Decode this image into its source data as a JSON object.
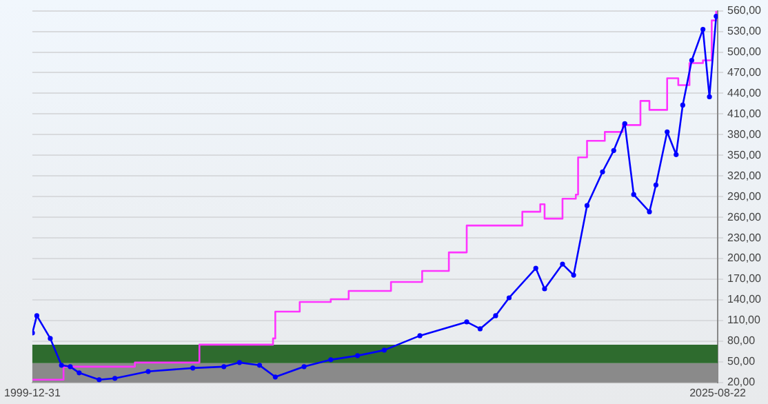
{
  "chart_data": {
    "type": "line",
    "xlim": [
      "1999-12-31",
      "2025-08-22"
    ],
    "xticks": [
      {
        "value": "1999-12-31",
        "label": "1999-12-31"
      },
      {
        "value": "2025-08-22",
        "label": "2025-08-22"
      }
    ],
    "ylim": [
      20,
      560
    ],
    "yticks": [
      {
        "value": 20,
        "label": "20,00"
      },
      {
        "value": 50,
        "label": "50,00"
      },
      {
        "value": 80,
        "label": "80,00"
      },
      {
        "value": 110,
        "label": "110,00"
      },
      {
        "value": 140,
        "label": "140,00"
      },
      {
        "value": 170,
        "label": "170,00"
      },
      {
        "value": 200,
        "label": "200,00"
      },
      {
        "value": 230,
        "label": "230,00"
      },
      {
        "value": 260,
        "label": "260,00"
      },
      {
        "value": 290,
        "label": "290,00"
      },
      {
        "value": 320,
        "label": "320,00"
      },
      {
        "value": 350,
        "label": "350,00"
      },
      {
        "value": 380,
        "label": "380,00"
      },
      {
        "value": 410,
        "label": "410,00"
      },
      {
        "value": 440,
        "label": "440,00"
      },
      {
        "value": 470,
        "label": "470,00"
      },
      {
        "value": 500,
        "label": "500,00"
      },
      {
        "value": 530,
        "label": "530,00"
      },
      {
        "value": 560,
        "label": "560,00"
      }
    ],
    "grid": "y",
    "legend": false,
    "bands": [
      {
        "axis": "y",
        "from": 20,
        "to": 48,
        "color": "#8a8a8a"
      },
      {
        "axis": "y",
        "from": 48,
        "to": 75,
        "color": "#2e6b2e"
      }
    ],
    "series": [
      {
        "type": "line",
        "color": "#0000ff",
        "marker": "circle",
        "x": [
          "2000-01",
          "2000-03",
          "2000-09",
          "2001-02",
          "2001-06",
          "2001-10",
          "2002-07",
          "2003-02",
          "2004-05",
          "2006-01",
          "2007-03",
          "2007-10",
          "2008-07",
          "2009-02",
          "2010-03",
          "2011-03",
          "2012-03",
          "2013-03",
          "2014-07",
          "2016-04",
          "2016-10",
          "2017-05",
          "2017-11",
          "2018-11",
          "2019-03",
          "2019-11",
          "2020-04",
          "2020-10",
          "2021-05",
          "2021-10",
          "2022-03",
          "2022-07",
          "2023-02",
          "2023-05",
          "2023-10",
          "2024-02",
          "2024-05",
          "2024-09",
          "2025-02",
          "2025-05",
          "2025-08"
        ],
        "values": [
          92,
          117,
          84,
          45,
          43,
          34,
          24,
          26,
          36,
          41,
          43,
          49,
          45,
          28,
          43,
          53,
          59,
          67,
          88,
          108,
          98,
          117,
          143,
          186,
          156,
          192,
          176,
          277,
          326,
          357,
          396,
          293,
          268,
          307,
          384,
          351,
          423,
          488,
          533,
          435,
          552
        ]
      },
      {
        "type": "step",
        "color": "#ff33ff",
        "marker": "none",
        "x": [
          "2000-01",
          "2001-03",
          "2002-04",
          "2003-11",
          "2006-04",
          "2009-01",
          "2009-02",
          "2010-01",
          "2011-03",
          "2011-11",
          "2013-06",
          "2014-08",
          "2015-08",
          "2016-04",
          "2017-08",
          "2018-05",
          "2019-01",
          "2019-03",
          "2019-11",
          "2020-05",
          "2020-06",
          "2020-10",
          "2021-06",
          "2022-02",
          "2022-10",
          "2023-02",
          "2023-10",
          "2024-03",
          "2024-08",
          "2025-02",
          "2025-06",
          "2025-08"
        ],
        "values": [
          24,
          43,
          43,
          49,
          75,
          84,
          123,
          137,
          141,
          153,
          166,
          182,
          209,
          248,
          248,
          268,
          279,
          258,
          287,
          293,
          347,
          371,
          384,
          394,
          429,
          416,
          462,
          452,
          484,
          488,
          546,
          560
        ]
      }
    ]
  }
}
